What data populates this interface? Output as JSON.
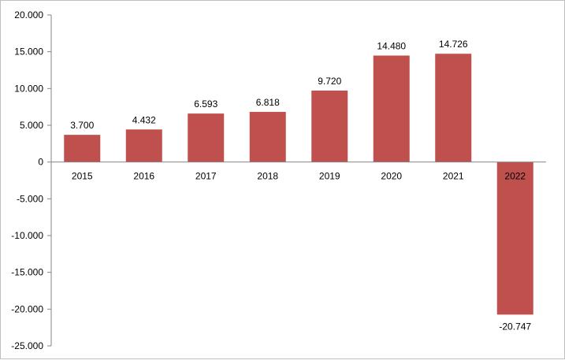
{
  "chart_data": {
    "type": "bar",
    "title": "",
    "xlabel": "",
    "ylabel": "",
    "categories": [
      "2015",
      "2016",
      "2017",
      "2018",
      "2019",
      "2020",
      "2021",
      "2022"
    ],
    "values": [
      3700,
      4432,
      6593,
      6818,
      9720,
      14480,
      14726,
      -20747
    ],
    "data_labels": [
      "3.700",
      "4.432",
      "6.593",
      "6.818",
      "9.720",
      "14.480",
      "14.726",
      "-20.747"
    ],
    "ylim": [
      -25000,
      20000
    ],
    "yticks": [
      20000,
      15000,
      10000,
      5000,
      0,
      -5000,
      -10000,
      -15000,
      -20000,
      -25000
    ],
    "ytick_labels": [
      "20.000",
      "15.000",
      "10.000",
      "5.000",
      "0",
      "-5.000",
      "-10.000",
      "-15.000",
      "-20.000",
      "-25.000"
    ],
    "bar_color": "#C0504D",
    "grid": false,
    "legend": "none"
  }
}
